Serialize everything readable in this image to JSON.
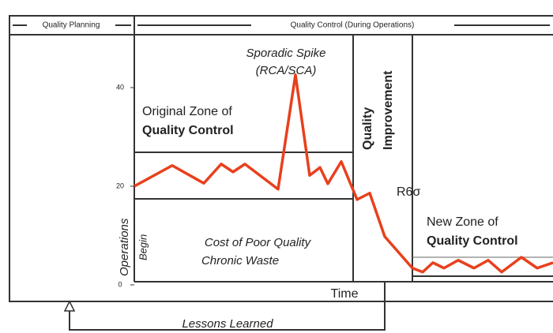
{
  "chart_data": {
    "type": "line",
    "header": {
      "left": "Quality Planning",
      "right": "Quality Control (During Operations)"
    },
    "annotations": {
      "spike": "Sporadic Spike",
      "spike_sub": "(RCA/SCA)",
      "original_zone": "Original Zone of",
      "original_zone_bold": "Quality Control",
      "improvement_1": "Quality",
      "improvement_2": "Improvement",
      "sigma": "R6σ",
      "new_zone": "New Zone of",
      "new_zone_bold": "Quality Control",
      "operations": "Operations",
      "begin": "Begin",
      "cost_1": "Cost of Poor Quality",
      "cost_2": "Chronic Waste",
      "lessons": "Lessons Learned"
    },
    "xlabel": "Time",
    "x": [
      0,
      48,
      88,
      110,
      125,
      140,
      182,
      204,
      222,
      235,
      245,
      262,
      282,
      298,
      317,
      352,
      365,
      378,
      392,
      410,
      430,
      448,
      465,
      490,
      510,
      530
    ],
    "series": [
      {
        "color": "#e8401c",
        "values": [
          20,
          24.2,
          20.6,
          24.5,
          22.9,
          24.5,
          19.4,
          42.6,
          22.2,
          23.8,
          20.5,
          25,
          17.3,
          18.6,
          9.8,
          3.4,
          2.6,
          4.5,
          3.4,
          5,
          3.4,
          5,
          2.6,
          5.6,
          3.4,
          4.5
        ]
      }
    ],
    "xlim": [
      0,
      530
    ],
    "ylim": [
      0,
      50
    ],
    "yticks": [
      0,
      20,
      40
    ]
  }
}
